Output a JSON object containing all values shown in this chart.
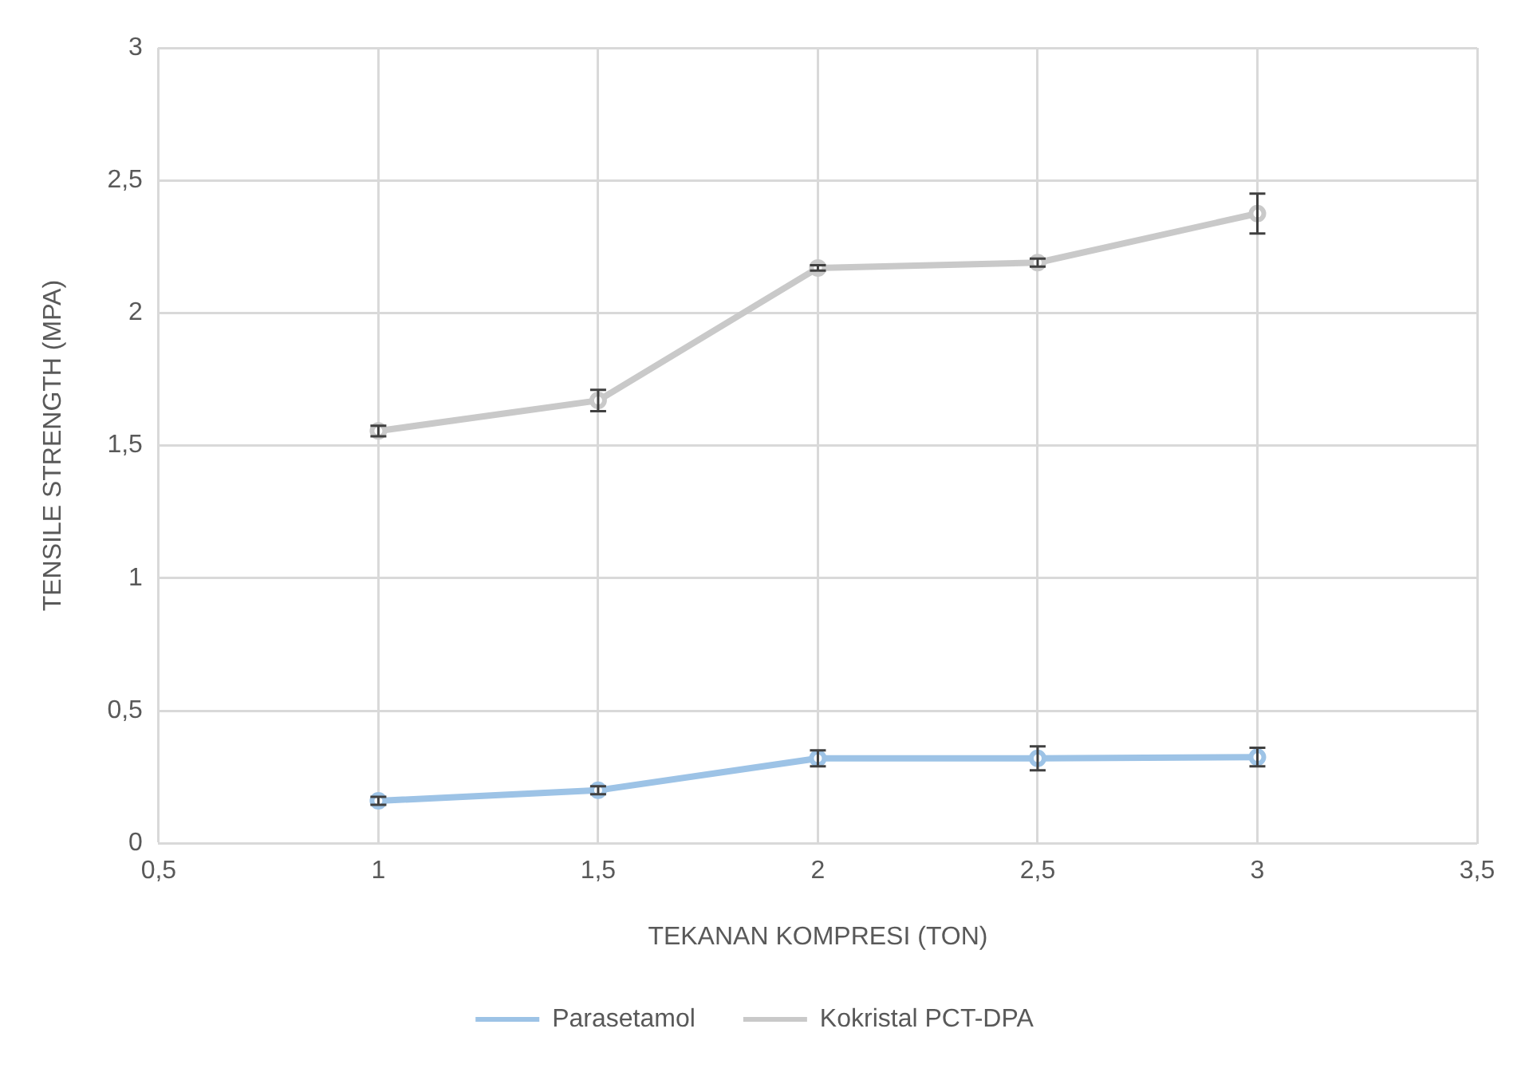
{
  "chart_data": {
    "type": "line",
    "xlabel": "TEKANAN KOMPRESI (TON)",
    "ylabel": "TENSILE STRENGTH (MPA)",
    "x": [
      1,
      1.5,
      2,
      2.5,
      3
    ],
    "series": [
      {
        "name": "Parasetamol",
        "color": "#9dc3e6",
        "values": [
          0.16,
          0.2,
          0.32,
          0.32,
          0.325
        ],
        "errors": [
          0.015,
          0.015,
          0.03,
          0.045,
          0.035
        ]
      },
      {
        "name": "Kokristal PCT-DPA",
        "color": "#c9c9c9",
        "values": [
          1.555,
          1.67,
          2.17,
          2.19,
          2.375
        ],
        "errors": [
          0.02,
          0.04,
          0.01,
          0.015,
          0.075
        ]
      }
    ],
    "xlim": [
      0.5,
      3.5
    ],
    "xticks": [
      {
        "value": 0.5,
        "label": "0,5"
      },
      1,
      {
        "value": 1.5,
        "label": "1,5"
      },
      2,
      {
        "value": 2.5,
        "label": "2,5"
      },
      3,
      {
        "value": 3.5,
        "label": "3,5"
      }
    ],
    "ylim": [
      0,
      3
    ],
    "yticks": [
      0,
      {
        "value": 0.5,
        "label": "0,5"
      },
      1,
      {
        "value": 1.5,
        "label": "1,5"
      },
      2,
      {
        "value": 2.5,
        "label": "2,5"
      },
      3
    ],
    "grid": true,
    "legend": "bottom",
    "marker": "circle",
    "line_style": "solid"
  }
}
